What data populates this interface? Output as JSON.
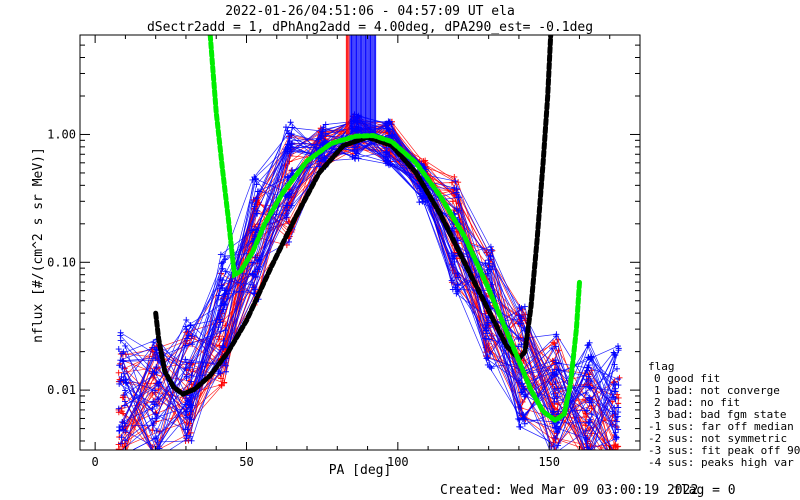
{
  "header": {
    "line1": "2022-01-26/04:51:06 - 04:57:09 UT ela",
    "line2": "dSectr2add = 1, dPhAng2add = 4.00deg, dPA290_est=  -0.1deg"
  },
  "footer": {
    "created": "Created: Wed Mar 09 03:00:19 2022",
    "flag": "flag = 0"
  },
  "legend": {
    "title": "flag",
    "items": [
      "0 good fit",
      "1 bad: not converge",
      "2 bad: no fit",
      "3 bad: bad fgm state",
      "-1 sus: far off median",
      "-2 sus: not symmetric",
      "-3 sus: fit peak off 90",
      "-4 sus: peaks high var"
    ]
  },
  "colors": {
    "series_a": "#ff0000",
    "series_b": "#0000ff",
    "fit_1": "#00ee00",
    "fit_2": "#000000",
    "axes": "#000000"
  },
  "chart_data": {
    "type": "line",
    "xlabel": "PA [deg]",
    "ylabel": "nflux [#/(cm^2 s sr MeV)]",
    "xlim": [
      -5,
      180
    ],
    "ylim": [
      0.0034,
      6.0
    ],
    "yscale": "log",
    "x_ticks": [
      0,
      50,
      100,
      150
    ],
    "y_ticks": [
      {
        "value": 0.01,
        "label": "0.01"
      },
      {
        "value": 0.1,
        "label": "0.10"
      },
      {
        "value": 1.0,
        "label": "1.00"
      }
    ],
    "pa_bins": [
      9,
      20,
      31,
      42,
      53,
      64,
      75,
      86,
      97,
      108,
      119,
      130,
      141,
      152,
      163,
      172
    ],
    "profile_red": [
      0.007,
      0.0085,
      0.011,
      0.03,
      0.12,
      0.38,
      0.78,
      0.98,
      0.88,
      0.45,
      0.17,
      0.05,
      0.016,
      0.009,
      0.006,
      0.005
    ],
    "profile_blue": [
      0.009,
      0.009,
      0.012,
      0.04,
      0.15,
      0.45,
      0.82,
      0.96,
      0.86,
      0.42,
      0.15,
      0.045,
      0.016,
      0.009,
      0.008,
      0.007
    ],
    "fit_green": [
      [
        38,
        6.0
      ],
      [
        40,
        1.5
      ],
      [
        42,
        0.55
      ],
      [
        44,
        0.22
      ],
      [
        46,
        0.08
      ],
      [
        48,
        0.085
      ],
      [
        52,
        0.12
      ],
      [
        56,
        0.2
      ],
      [
        62,
        0.35
      ],
      [
        70,
        0.62
      ],
      [
        78,
        0.85
      ],
      [
        86,
        0.97
      ],
      [
        92,
        0.98
      ],
      [
        98,
        0.88
      ],
      [
        106,
        0.6
      ],
      [
        114,
        0.33
      ],
      [
        122,
        0.16
      ],
      [
        130,
        0.062
      ],
      [
        138,
        0.022
      ],
      [
        144,
        0.01
      ],
      [
        148,
        0.0068
      ],
      [
        152,
        0.0058
      ],
      [
        155,
        0.0065
      ],
      [
        157,
        0.011
      ],
      [
        159,
        0.03
      ],
      [
        160,
        0.07
      ]
    ],
    "fit_black": [
      [
        20,
        0.04
      ],
      [
        21,
        0.025
      ],
      [
        23,
        0.014
      ],
      [
        26,
        0.0105
      ],
      [
        29,
        0.0093
      ],
      [
        33,
        0.0102
      ],
      [
        38,
        0.013
      ],
      [
        44,
        0.02
      ],
      [
        50,
        0.035
      ],
      [
        58,
        0.09
      ],
      [
        66,
        0.22
      ],
      [
        74,
        0.5
      ],
      [
        82,
        0.82
      ],
      [
        90,
        0.95
      ],
      [
        98,
        0.82
      ],
      [
        106,
        0.5
      ],
      [
        114,
        0.24
      ],
      [
        122,
        0.1
      ],
      [
        130,
        0.042
      ],
      [
        136,
        0.022
      ],
      [
        140,
        0.0175
      ],
      [
        142,
        0.02
      ],
      [
        144,
        0.045
      ],
      [
        146,
        0.15
      ],
      [
        148,
        0.6
      ],
      [
        149.5,
        2.0
      ],
      [
        150.5,
        6.0
      ]
    ]
  }
}
